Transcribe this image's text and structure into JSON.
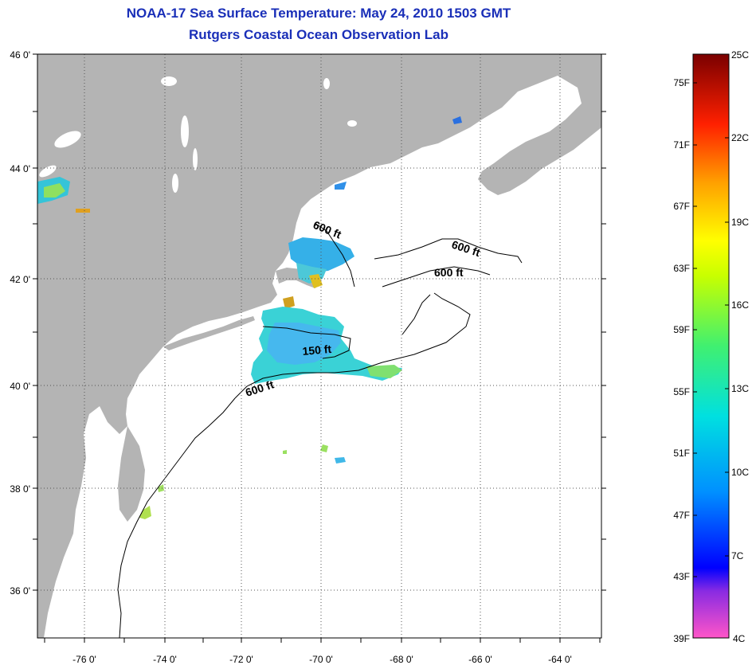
{
  "title": {
    "line1": "NOAA-17 Sea Surface Temperature:  May 24, 2010 1503 GMT",
    "line2": "Rutgers Coastal Ocean Observation Lab"
  },
  "colors": {
    "title": "#1a2fb8",
    "land": "#b4b4b4",
    "ocean": "#ffffff"
  },
  "axes": {
    "lat_labels": [
      "46 0'",
      "44 0'",
      "42 0'",
      "40 0'",
      "38 0'",
      "36 0'"
    ],
    "lon_labels": [
      "-76 0'",
      "-74 0'",
      "-72 0'",
      "-70 0'",
      "-68 0'",
      "-66 0'",
      "-64 0'"
    ]
  },
  "contours": {
    "labels": [
      "600 ft",
      "600 ft",
      "600 ft",
      "150 ft",
      "600 ft"
    ]
  },
  "colorbar": {
    "fahrenheit": [
      "75F",
      "71F",
      "67F",
      "63F",
      "59F",
      "55F",
      "51F",
      "47F",
      "43F",
      "39F"
    ],
    "celsius": [
      "25C",
      "22C",
      "19C",
      "16C",
      "13C",
      "10C",
      "7C",
      "4C"
    ]
  }
}
